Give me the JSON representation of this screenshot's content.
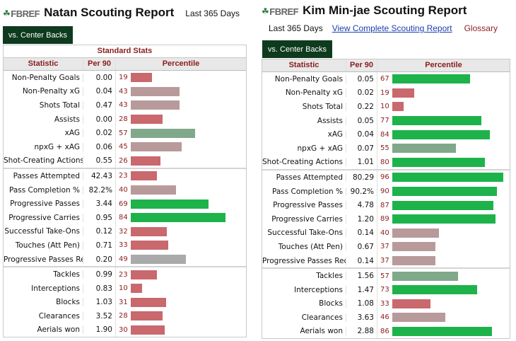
{
  "colors": {
    "tab_bg": "#0e3a1d",
    "header_text": "#8b1c1c",
    "link": "#1a3fb0",
    "bar_low": "#c9686d",
    "bar_mid_low": "#b89a9b",
    "bar_mid": "#aaaaaa",
    "bar_mid_high": "#7fa98a",
    "bar_high": "#1db34a"
  },
  "logo": {
    "mark": "☘",
    "text": "FBREF"
  },
  "left": {
    "title": "Natan Scouting Report",
    "period": "Last 365 Days",
    "tab": "vs. Center Backs",
    "caption": "Standard Stats",
    "columns": [
      "Statistic",
      "Per 90",
      "Percentile"
    ],
    "rows": [
      {
        "stat": "Non-Penalty Goals",
        "per90": "0.00",
        "pct": 19
      },
      {
        "stat": "Non-Penalty xG",
        "per90": "0.04",
        "pct": 43
      },
      {
        "stat": "Shots Total",
        "per90": "0.47",
        "pct": 43
      },
      {
        "stat": "Assists",
        "per90": "0.00",
        "pct": 28
      },
      {
        "stat": "xAG",
        "per90": "0.02",
        "pct": 57
      },
      {
        "stat": "npxG + xAG",
        "per90": "0.06",
        "pct": 45
      },
      {
        "stat": "Shot-Creating Actions",
        "per90": "0.55",
        "pct": 26
      },
      {
        "stat": "Passes Attempted",
        "per90": "42.43",
        "pct": 23
      },
      {
        "stat": "Pass Completion %",
        "per90": "82.2%",
        "pct": 40
      },
      {
        "stat": "Progressive Passes",
        "per90": "3.44",
        "pct": 69
      },
      {
        "stat": "Progressive Carries",
        "per90": "0.95",
        "pct": 84
      },
      {
        "stat": "Successful Take-Ons",
        "per90": "0.12",
        "pct": 32
      },
      {
        "stat": "Touches (Att Pen)",
        "per90": "0.71",
        "pct": 33
      },
      {
        "stat": "Progressive Passes Rec",
        "per90": "0.20",
        "pct": 49
      },
      {
        "stat": "Tackles",
        "per90": "0.99",
        "pct": 23
      },
      {
        "stat": "Interceptions",
        "per90": "0.83",
        "pct": 10
      },
      {
        "stat": "Blocks",
        "per90": "1.03",
        "pct": 31
      },
      {
        "stat": "Clearances",
        "per90": "3.52",
        "pct": 28
      },
      {
        "stat": "Aerials won",
        "per90": "1.90",
        "pct": 30
      }
    ]
  },
  "right": {
    "title": "Kim Min-jae Scouting Report",
    "period": "Last 365 Days",
    "complete_link": "View Complete Scouting Report",
    "glossary": "Glossary",
    "tab": "vs. Center Backs",
    "columns": [
      "Statistic",
      "Per 90",
      "Percentile"
    ],
    "rows": [
      {
        "stat": "Non-Penalty Goals",
        "per90": "0.05",
        "pct": 67
      },
      {
        "stat": "Non-Penalty xG",
        "per90": "0.02",
        "pct": 19
      },
      {
        "stat": "Shots Total",
        "per90": "0.22",
        "pct": 10
      },
      {
        "stat": "Assists",
        "per90": "0.05",
        "pct": 77
      },
      {
        "stat": "xAG",
        "per90": "0.04",
        "pct": 84
      },
      {
        "stat": "npxG + xAG",
        "per90": "0.07",
        "pct": 55
      },
      {
        "stat": "Shot-Creating Actions",
        "per90": "1.01",
        "pct": 80
      },
      {
        "stat": "Passes Attempted",
        "per90": "80.29",
        "pct": 96
      },
      {
        "stat": "Pass Completion %",
        "per90": "90.2%",
        "pct": 90
      },
      {
        "stat": "Progressive Passes",
        "per90": "4.78",
        "pct": 87
      },
      {
        "stat": "Progressive Carries",
        "per90": "1.20",
        "pct": 89
      },
      {
        "stat": "Successful Take-Ons",
        "per90": "0.14",
        "pct": 40
      },
      {
        "stat": "Touches (Att Pen)",
        "per90": "0.67",
        "pct": 37
      },
      {
        "stat": "Progressive Passes Rec",
        "per90": "0.14",
        "pct": 37
      },
      {
        "stat": "Tackles",
        "per90": "1.56",
        "pct": 57
      },
      {
        "stat": "Interceptions",
        "per90": "1.47",
        "pct": 73
      },
      {
        "stat": "Blocks",
        "per90": "1.08",
        "pct": 33
      },
      {
        "stat": "Clearances",
        "per90": "3.63",
        "pct": 46
      },
      {
        "stat": "Aerials won",
        "per90": "2.88",
        "pct": 86
      }
    ]
  }
}
